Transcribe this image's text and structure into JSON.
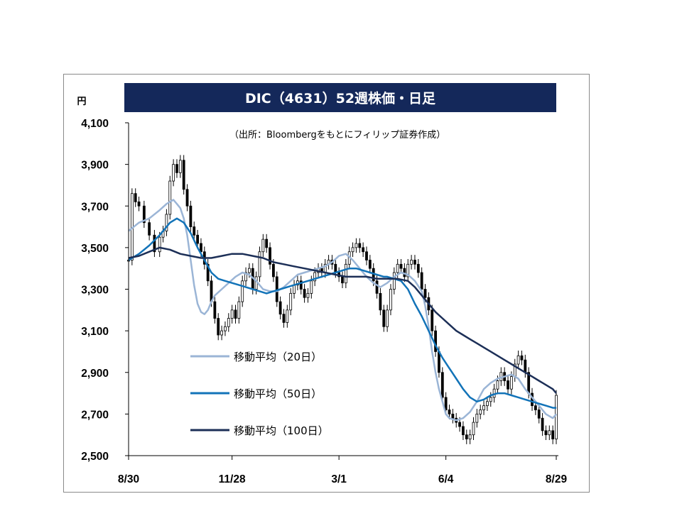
{
  "chart_data": {
    "type": "line",
    "title": "DIC（4631）52週株価・日足",
    "unit": "円",
    "source_note": "（出所：Bloombergをもとにフィリップ証券作成）",
    "ylim": [
      2500,
      4100
    ],
    "y_ticks": [
      "4,100",
      "3,900",
      "3,700",
      "3,500",
      "3,300",
      "3,100",
      "2,900",
      "2,700",
      "2,500"
    ],
    "x_ticks": [
      "8/30",
      "11/28",
      "3/1",
      "6/4",
      "8/29"
    ],
    "grid": false,
    "legend_position": "bottom-left",
    "colors": {
      "title_bg": "#14285a",
      "ma20": "#9bb5d6",
      "ma50": "#1273b8",
      "ma100": "#1c2f57",
      "price": "#000000"
    },
    "candlestick_close": [
      [
        0,
        3440
      ],
      [
        2,
        3760
      ],
      [
        4,
        3720
      ],
      [
        6,
        3700
      ],
      [
        9,
        3620
      ],
      [
        12,
        3560
      ],
      [
        15,
        3480
      ],
      [
        18,
        3550
      ],
      [
        20,
        3580
      ],
      [
        22,
        3660
      ],
      [
        24,
        3820
      ],
      [
        26,
        3900
      ],
      [
        28,
        3860
      ],
      [
        30,
        3920
      ],
      [
        32,
        3780
      ],
      [
        34,
        3700
      ],
      [
        36,
        3600
      ],
      [
        38,
        3560
      ],
      [
        40,
        3520
      ],
      [
        42,
        3480
      ],
      [
        44,
        3420
      ],
      [
        46,
        3340
      ],
      [
        48,
        3240
      ],
      [
        50,
        3160
      ],
      [
        52,
        3080
      ],
      [
        54,
        3100
      ],
      [
        56,
        3120
      ],
      [
        58,
        3160
      ],
      [
        60,
        3200
      ],
      [
        62,
        3160
      ],
      [
        64,
        3240
      ],
      [
        66,
        3340
      ],
      [
        68,
        3380
      ],
      [
        70,
        3400
      ],
      [
        72,
        3300
      ],
      [
        74,
        3360
      ],
      [
        76,
        3480
      ],
      [
        78,
        3540
      ],
      [
        80,
        3500
      ],
      [
        82,
        3420
      ],
      [
        84,
        3360
      ],
      [
        86,
        3240
      ],
      [
        88,
        3180
      ],
      [
        90,
        3140
      ],
      [
        92,
        3200
      ],
      [
        94,
        3280
      ],
      [
        96,
        3320
      ],
      [
        98,
        3340
      ],
      [
        100,
        3300
      ],
      [
        102,
        3260
      ],
      [
        104,
        3280
      ],
      [
        106,
        3340
      ],
      [
        108,
        3380
      ],
      [
        110,
        3400
      ],
      [
        112,
        3380
      ],
      [
        114,
        3420
      ],
      [
        116,
        3440
      ],
      [
        118,
        3420
      ],
      [
        120,
        3380
      ],
      [
        122,
        3360
      ],
      [
        124,
        3330
      ],
      [
        126,
        3420
      ],
      [
        128,
        3480
      ],
      [
        130,
        3500
      ],
      [
        132,
        3520
      ],
      [
        134,
        3500
      ],
      [
        136,
        3480
      ],
      [
        138,
        3440
      ],
      [
        140,
        3400
      ],
      [
        142,
        3340
      ],
      [
        144,
        3280
      ],
      [
        146,
        3200
      ],
      [
        148,
        3120
      ],
      [
        150,
        3200
      ],
      [
        152,
        3300
      ],
      [
        154,
        3380
      ],
      [
        156,
        3420
      ],
      [
        158,
        3400
      ],
      [
        160,
        3360
      ],
      [
        162,
        3420
      ],
      [
        164,
        3440
      ],
      [
        166,
        3420
      ],
      [
        168,
        3380
      ],
      [
        170,
        3300
      ],
      [
        172,
        3260
      ],
      [
        174,
        3200
      ],
      [
        176,
        3100
      ],
      [
        178,
        3000
      ],
      [
        180,
        2900
      ],
      [
        182,
        2780
      ],
      [
        184,
        2720
      ],
      [
        186,
        2700
      ],
      [
        188,
        2680
      ],
      [
        190,
        2660
      ],
      [
        192,
        2640
      ],
      [
        194,
        2600
      ],
      [
        196,
        2580
      ],
      [
        198,
        2600
      ],
      [
        200,
        2660
      ],
      [
        202,
        2700
      ],
      [
        204,
        2720
      ],
      [
        206,
        2740
      ],
      [
        208,
        2760
      ],
      [
        210,
        2780
      ],
      [
        212,
        2820
      ],
      [
        214,
        2860
      ],
      [
        216,
        2900
      ],
      [
        218,
        2860
      ],
      [
        220,
        2820
      ],
      [
        222,
        2880
      ],
      [
        224,
        2940
      ],
      [
        226,
        2980
      ],
      [
        228,
        2960
      ],
      [
        230,
        2900
      ],
      [
        232,
        2800
      ],
      [
        234,
        2740
      ],
      [
        236,
        2720
      ],
      [
        238,
        2680
      ],
      [
        240,
        2620
      ],
      [
        242,
        2600
      ],
      [
        244,
        2620
      ],
      [
        246,
        2580
      ],
      [
        248,
        2790
      ]
    ],
    "series": [
      {
        "name": "移動平均（20日）",
        "values": [
          [
            0,
            3580
          ],
          [
            6,
            3620
          ],
          [
            12,
            3640
          ],
          [
            18,
            3680
          ],
          [
            22,
            3710
          ],
          [
            26,
            3730
          ],
          [
            28,
            3710
          ],
          [
            30,
            3690
          ],
          [
            32,
            3640
          ],
          [
            34,
            3560
          ],
          [
            36,
            3440
          ],
          [
            38,
            3320
          ],
          [
            40,
            3230
          ],
          [
            42,
            3190
          ],
          [
            44,
            3180
          ],
          [
            46,
            3200
          ],
          [
            48,
            3240
          ],
          [
            50,
            3270
          ],
          [
            54,
            3300
          ],
          [
            58,
            3330
          ],
          [
            62,
            3360
          ],
          [
            66,
            3380
          ],
          [
            70,
            3370
          ],
          [
            74,
            3340
          ],
          [
            78,
            3300
          ],
          [
            82,
            3290
          ],
          [
            86,
            3290
          ],
          [
            90,
            3310
          ],
          [
            94,
            3340
          ],
          [
            98,
            3370
          ],
          [
            102,
            3380
          ],
          [
            106,
            3390
          ],
          [
            110,
            3400
          ],
          [
            114,
            3410
          ],
          [
            118,
            3430
          ],
          [
            122,
            3460
          ],
          [
            126,
            3470
          ],
          [
            130,
            3440
          ],
          [
            134,
            3400
          ],
          [
            138,
            3360
          ],
          [
            142,
            3330
          ],
          [
            146,
            3310
          ],
          [
            150,
            3330
          ],
          [
            154,
            3360
          ],
          [
            158,
            3380
          ],
          [
            162,
            3370
          ],
          [
            166,
            3340
          ],
          [
            170,
            3290
          ],
          [
            172,
            3220
          ],
          [
            174,
            3120
          ],
          [
            176,
            3000
          ],
          [
            178,
            2900
          ],
          [
            180,
            2820
          ],
          [
            182,
            2760
          ],
          [
            184,
            2700
          ],
          [
            186,
            2680
          ],
          [
            190,
            2670
          ],
          [
            194,
            2680
          ],
          [
            198,
            2710
          ],
          [
            202,
            2760
          ],
          [
            206,
            2820
          ],
          [
            210,
            2850
          ],
          [
            214,
            2870
          ],
          [
            218,
            2880
          ],
          [
            222,
            2890
          ],
          [
            226,
            2870
          ],
          [
            230,
            2820
          ],
          [
            234,
            2780
          ],
          [
            238,
            2740
          ],
          [
            242,
            2700
          ],
          [
            246,
            2680
          ],
          [
            248,
            2700
          ]
        ]
      },
      {
        "name": "移動平均（50日）",
        "values": [
          [
            0,
            3440
          ],
          [
            6,
            3470
          ],
          [
            12,
            3510
          ],
          [
            18,
            3560
          ],
          [
            24,
            3620
          ],
          [
            28,
            3640
          ],
          [
            32,
            3620
          ],
          [
            36,
            3570
          ],
          [
            40,
            3500
          ],
          [
            44,
            3440
          ],
          [
            48,
            3380
          ],
          [
            52,
            3350
          ],
          [
            56,
            3340
          ],
          [
            60,
            3330
          ],
          [
            64,
            3320
          ],
          [
            68,
            3310
          ],
          [
            72,
            3300
          ],
          [
            76,
            3290
          ],
          [
            80,
            3280
          ],
          [
            84,
            3290
          ],
          [
            88,
            3300
          ],
          [
            92,
            3310
          ],
          [
            96,
            3320
          ],
          [
            100,
            3330
          ],
          [
            104,
            3340
          ],
          [
            108,
            3350
          ],
          [
            112,
            3360
          ],
          [
            116,
            3370
          ],
          [
            120,
            3380
          ],
          [
            124,
            3390
          ],
          [
            128,
            3400
          ],
          [
            132,
            3400
          ],
          [
            136,
            3390
          ],
          [
            140,
            3380
          ],
          [
            144,
            3370
          ],
          [
            148,
            3360
          ],
          [
            150,
            3360
          ],
          [
            154,
            3350
          ],
          [
            158,
            3340
          ],
          [
            162,
            3300
          ],
          [
            166,
            3230
          ],
          [
            170,
            3170
          ],
          [
            174,
            3100
          ],
          [
            178,
            3030
          ],
          [
            182,
            2970
          ],
          [
            186,
            2920
          ],
          [
            190,
            2870
          ],
          [
            194,
            2820
          ],
          [
            198,
            2780
          ],
          [
            202,
            2760
          ],
          [
            206,
            2770
          ],
          [
            210,
            2790
          ],
          [
            214,
            2800
          ],
          [
            218,
            2800
          ],
          [
            222,
            2790
          ],
          [
            226,
            2780
          ],
          [
            230,
            2770
          ],
          [
            234,
            2760
          ],
          [
            238,
            2750
          ],
          [
            242,
            2740
          ],
          [
            246,
            2730
          ],
          [
            248,
            2730
          ]
        ]
      },
      {
        "name": "移動平均（100日）",
        "values": [
          [
            0,
            3450
          ],
          [
            6,
            3460
          ],
          [
            12,
            3480
          ],
          [
            18,
            3500
          ],
          [
            24,
            3490
          ],
          [
            30,
            3470
          ],
          [
            36,
            3460
          ],
          [
            42,
            3450
          ],
          [
            48,
            3450
          ],
          [
            54,
            3460
          ],
          [
            60,
            3470
          ],
          [
            66,
            3470
          ],
          [
            72,
            3460
          ],
          [
            78,
            3450
          ],
          [
            84,
            3430
          ],
          [
            90,
            3420
          ],
          [
            96,
            3410
          ],
          [
            102,
            3400
          ],
          [
            108,
            3390
          ],
          [
            114,
            3380
          ],
          [
            120,
            3370
          ],
          [
            126,
            3360
          ],
          [
            132,
            3360
          ],
          [
            138,
            3360
          ],
          [
            144,
            3350
          ],
          [
            150,
            3350
          ],
          [
            156,
            3350
          ],
          [
            162,
            3340
          ],
          [
            166,
            3310
          ],
          [
            170,
            3270
          ],
          [
            174,
            3230
          ],
          [
            178,
            3190
          ],
          [
            182,
            3160
          ],
          [
            186,
            3130
          ],
          [
            190,
            3100
          ],
          [
            194,
            3080
          ],
          [
            198,
            3060
          ],
          [
            202,
            3040
          ],
          [
            206,
            3020
          ],
          [
            210,
            3000
          ],
          [
            214,
            2980
          ],
          [
            218,
            2960
          ],
          [
            222,
            2940
          ],
          [
            226,
            2920
          ],
          [
            230,
            2900
          ],
          [
            234,
            2880
          ],
          [
            238,
            2860
          ],
          [
            242,
            2840
          ],
          [
            246,
            2820
          ],
          [
            248,
            2800
          ]
        ]
      }
    ]
  }
}
